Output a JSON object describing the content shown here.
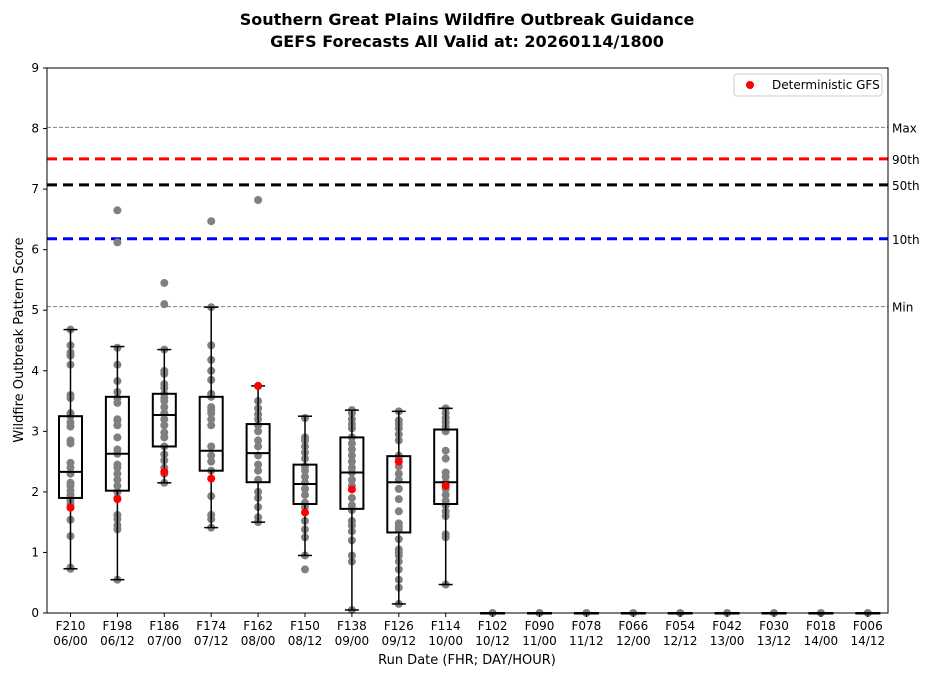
{
  "chart_data": {
    "type": "box",
    "title": "Southern Great Plains Wildfire Outbreak Guidance",
    "subtitle": "GEFS Forecasts All Valid at: 20260114/1800",
    "xlabel": "Run Date (FHR; DAY/HOUR)",
    "ylabel": "Wildfire Outbreak Pattern Score",
    "ylim": [
      0,
      9
    ],
    "yticks": [
      "0",
      "1",
      "2",
      "3",
      "4",
      "5",
      "6",
      "7",
      "8",
      "9"
    ],
    "categories": [
      {
        "fhr": "F210",
        "date": "06/00"
      },
      {
        "fhr": "F198",
        "date": "06/12"
      },
      {
        "fhr": "F186",
        "date": "07/00"
      },
      {
        "fhr": "F174",
        "date": "07/12"
      },
      {
        "fhr": "F162",
        "date": "08/00"
      },
      {
        "fhr": "F150",
        "date": "08/12"
      },
      {
        "fhr": "F138",
        "date": "09/00"
      },
      {
        "fhr": "F126",
        "date": "09/12"
      },
      {
        "fhr": "F114",
        "date": "10/00"
      },
      {
        "fhr": "F102",
        "date": "10/12"
      },
      {
        "fhr": "F090",
        "date": "11/00"
      },
      {
        "fhr": "F078",
        "date": "11/12"
      },
      {
        "fhr": "F066",
        "date": "12/00"
      },
      {
        "fhr": "F054",
        "date": "12/12"
      },
      {
        "fhr": "F042",
        "date": "13/00"
      },
      {
        "fhr": "F030",
        "date": "13/12"
      },
      {
        "fhr": "F018",
        "date": "14/00"
      },
      {
        "fhr": "F006",
        "date": "14/12"
      }
    ],
    "reference_lines": [
      {
        "label": "Max",
        "value": 8.02,
        "style": "thin-dashed",
        "color": "#808080"
      },
      {
        "label": "90th",
        "value": 7.5,
        "style": "thick-dashed",
        "color": "#ff0000"
      },
      {
        "label": "50th",
        "value": 7.07,
        "style": "thick-dashed",
        "color": "#000000"
      },
      {
        "label": "10th",
        "value": 6.18,
        "style": "thick-dashed",
        "color": "#0000ff"
      },
      {
        "label": "Min",
        "value": 5.06,
        "style": "thin-dashed",
        "color": "#808080"
      }
    ],
    "boxes": [
      {
        "whisker_low": 0.73,
        "q1": 1.9,
        "median": 2.33,
        "q3": 3.25,
        "whisker_high": 4.68,
        "deterministic": 1.74,
        "members": [
          0.73,
          0.75,
          1.27,
          1.54,
          1.8,
          1.86,
          1.95,
          2.02,
          2.1,
          2.15,
          2.3,
          2.4,
          2.48,
          2.8,
          2.85,
          3.08,
          3.15,
          3.25,
          3.3,
          3.55,
          3.6,
          4.1,
          4.25,
          4.3,
          4.42,
          4.68
        ]
      },
      {
        "whisker_low": 0.55,
        "q1": 2.02,
        "median": 2.63,
        "q3": 3.57,
        "whisker_high": 4.4,
        "deterministic": 1.88,
        "members": [
          0.55,
          1.38,
          1.45,
          1.55,
          1.62,
          1.9,
          2.0,
          2.1,
          2.2,
          2.3,
          2.4,
          2.45,
          2.63,
          2.7,
          2.9,
          3.1,
          3.18,
          3.2,
          3.47,
          3.55,
          3.65,
          3.83,
          4.1,
          4.38,
          6.12,
          6.65
        ]
      },
      {
        "whisker_low": 2.15,
        "q1": 2.75,
        "median": 3.27,
        "q3": 3.62,
        "whisker_high": 4.35,
        "deterministic": 2.33,
        "members": [
          2.15,
          2.3,
          2.4,
          2.52,
          2.62,
          2.75,
          2.9,
          2.98,
          3.1,
          3.2,
          3.3,
          3.4,
          3.5,
          3.55,
          3.62,
          3.72,
          3.78,
          3.95,
          4.0,
          4.35,
          5.1,
          5.45
        ]
      },
      {
        "whisker_low": 1.41,
        "q1": 2.35,
        "median": 2.68,
        "q3": 3.57,
        "whisker_high": 5.05,
        "deterministic": 2.22,
        "members": [
          1.41,
          1.55,
          1.62,
          1.93,
          2.35,
          2.5,
          2.6,
          2.75,
          3.1,
          3.2,
          3.3,
          3.35,
          3.4,
          3.57,
          3.62,
          3.85,
          4.0,
          4.18,
          4.42,
          5.05,
          6.47
        ]
      },
      {
        "whisker_low": 1.5,
        "q1": 2.16,
        "median": 2.64,
        "q3": 3.12,
        "whisker_high": 3.75,
        "deterministic": 3.75,
        "members": [
          1.5,
          1.58,
          1.75,
          1.9,
          2.0,
          2.2,
          2.35,
          2.45,
          2.6,
          2.75,
          2.85,
          3.0,
          3.1,
          3.2,
          3.28,
          3.38,
          3.5,
          3.75,
          6.82
        ]
      },
      {
        "whisker_low": 0.95,
        "q1": 1.8,
        "median": 2.13,
        "q3": 2.45,
        "whisker_high": 3.25,
        "deterministic": 1.66,
        "members": [
          0.72,
          0.95,
          1.25,
          1.38,
          1.52,
          1.75,
          1.82,
          1.95,
          2.05,
          2.15,
          2.25,
          2.35,
          2.42,
          2.55,
          2.65,
          2.75,
          2.85,
          2.9,
          3.22
        ]
      },
      {
        "whisker_low": 0.05,
        "q1": 1.72,
        "median": 2.32,
        "q3": 2.9,
        "whisker_high": 3.35,
        "deterministic": 2.04,
        "members": [
          0.05,
          0.85,
          0.95,
          1.2,
          1.35,
          1.45,
          1.52,
          1.7,
          1.78,
          1.9,
          2.1,
          2.2,
          2.32,
          2.4,
          2.5,
          2.6,
          2.7,
          2.8,
          2.9,
          3.05,
          3.12,
          3.2,
          3.3,
          3.35
        ]
      },
      {
        "whisker_low": 0.15,
        "q1": 1.33,
        "median": 2.16,
        "q3": 2.59,
        "whisker_high": 3.33,
        "deterministic": 2.5,
        "members": [
          0.15,
          0.42,
          0.55,
          0.72,
          0.85,
          0.95,
          1.0,
          1.05,
          1.22,
          1.38,
          1.42,
          1.48,
          1.68,
          1.88,
          2.05,
          2.2,
          2.3,
          2.42,
          2.55,
          2.6,
          2.85,
          2.95,
          3.05,
          3.12,
          3.18,
          3.33
        ]
      },
      {
        "whisker_low": 0.47,
        "q1": 1.8,
        "median": 2.16,
        "q3": 3.03,
        "whisker_high": 3.38,
        "deterministic": 2.1,
        "members": [
          0.47,
          1.25,
          1.3,
          1.6,
          1.68,
          1.78,
          1.85,
          1.95,
          2.05,
          2.15,
          2.25,
          2.32,
          2.55,
          2.68,
          3.0,
          3.08,
          3.15,
          3.22,
          3.3,
          3.38
        ]
      },
      {
        "whisker_low": 0,
        "q1": 0,
        "median": 0,
        "q3": 0,
        "whisker_high": 0,
        "deterministic": null,
        "members": [
          0
        ]
      },
      {
        "whisker_low": 0,
        "q1": 0,
        "median": 0,
        "q3": 0,
        "whisker_high": 0,
        "deterministic": null,
        "members": [
          0
        ]
      },
      {
        "whisker_low": 0,
        "q1": 0,
        "median": 0,
        "q3": 0,
        "whisker_high": 0,
        "deterministic": null,
        "members": [
          0
        ]
      },
      {
        "whisker_low": 0,
        "q1": 0,
        "median": 0,
        "q3": 0,
        "whisker_high": 0,
        "deterministic": null,
        "members": [
          0
        ]
      },
      {
        "whisker_low": 0,
        "q1": 0,
        "median": 0,
        "q3": 0,
        "whisker_high": 0,
        "deterministic": null,
        "members": [
          0
        ]
      },
      {
        "whisker_low": 0,
        "q1": 0,
        "median": 0,
        "q3": 0,
        "whisker_high": 0,
        "deterministic": null,
        "members": [
          0
        ]
      },
      {
        "whisker_low": 0,
        "q1": 0,
        "median": 0,
        "q3": 0,
        "whisker_high": 0,
        "deterministic": null,
        "members": [
          0
        ]
      },
      {
        "whisker_low": 0,
        "q1": 0,
        "median": 0,
        "q3": 0,
        "whisker_high": 0,
        "deterministic": null,
        "members": [
          0
        ]
      },
      {
        "whisker_low": 0,
        "q1": 0,
        "median": 0,
        "q3": 0,
        "whisker_high": 0,
        "deterministic": null,
        "members": [
          0
        ]
      }
    ],
    "legend": {
      "label": "Deterministic GFS",
      "position": "top-right",
      "color": "#ff0000"
    },
    "member_color": "#808080",
    "deterministic_color": "#ff0000",
    "grid": false
  }
}
